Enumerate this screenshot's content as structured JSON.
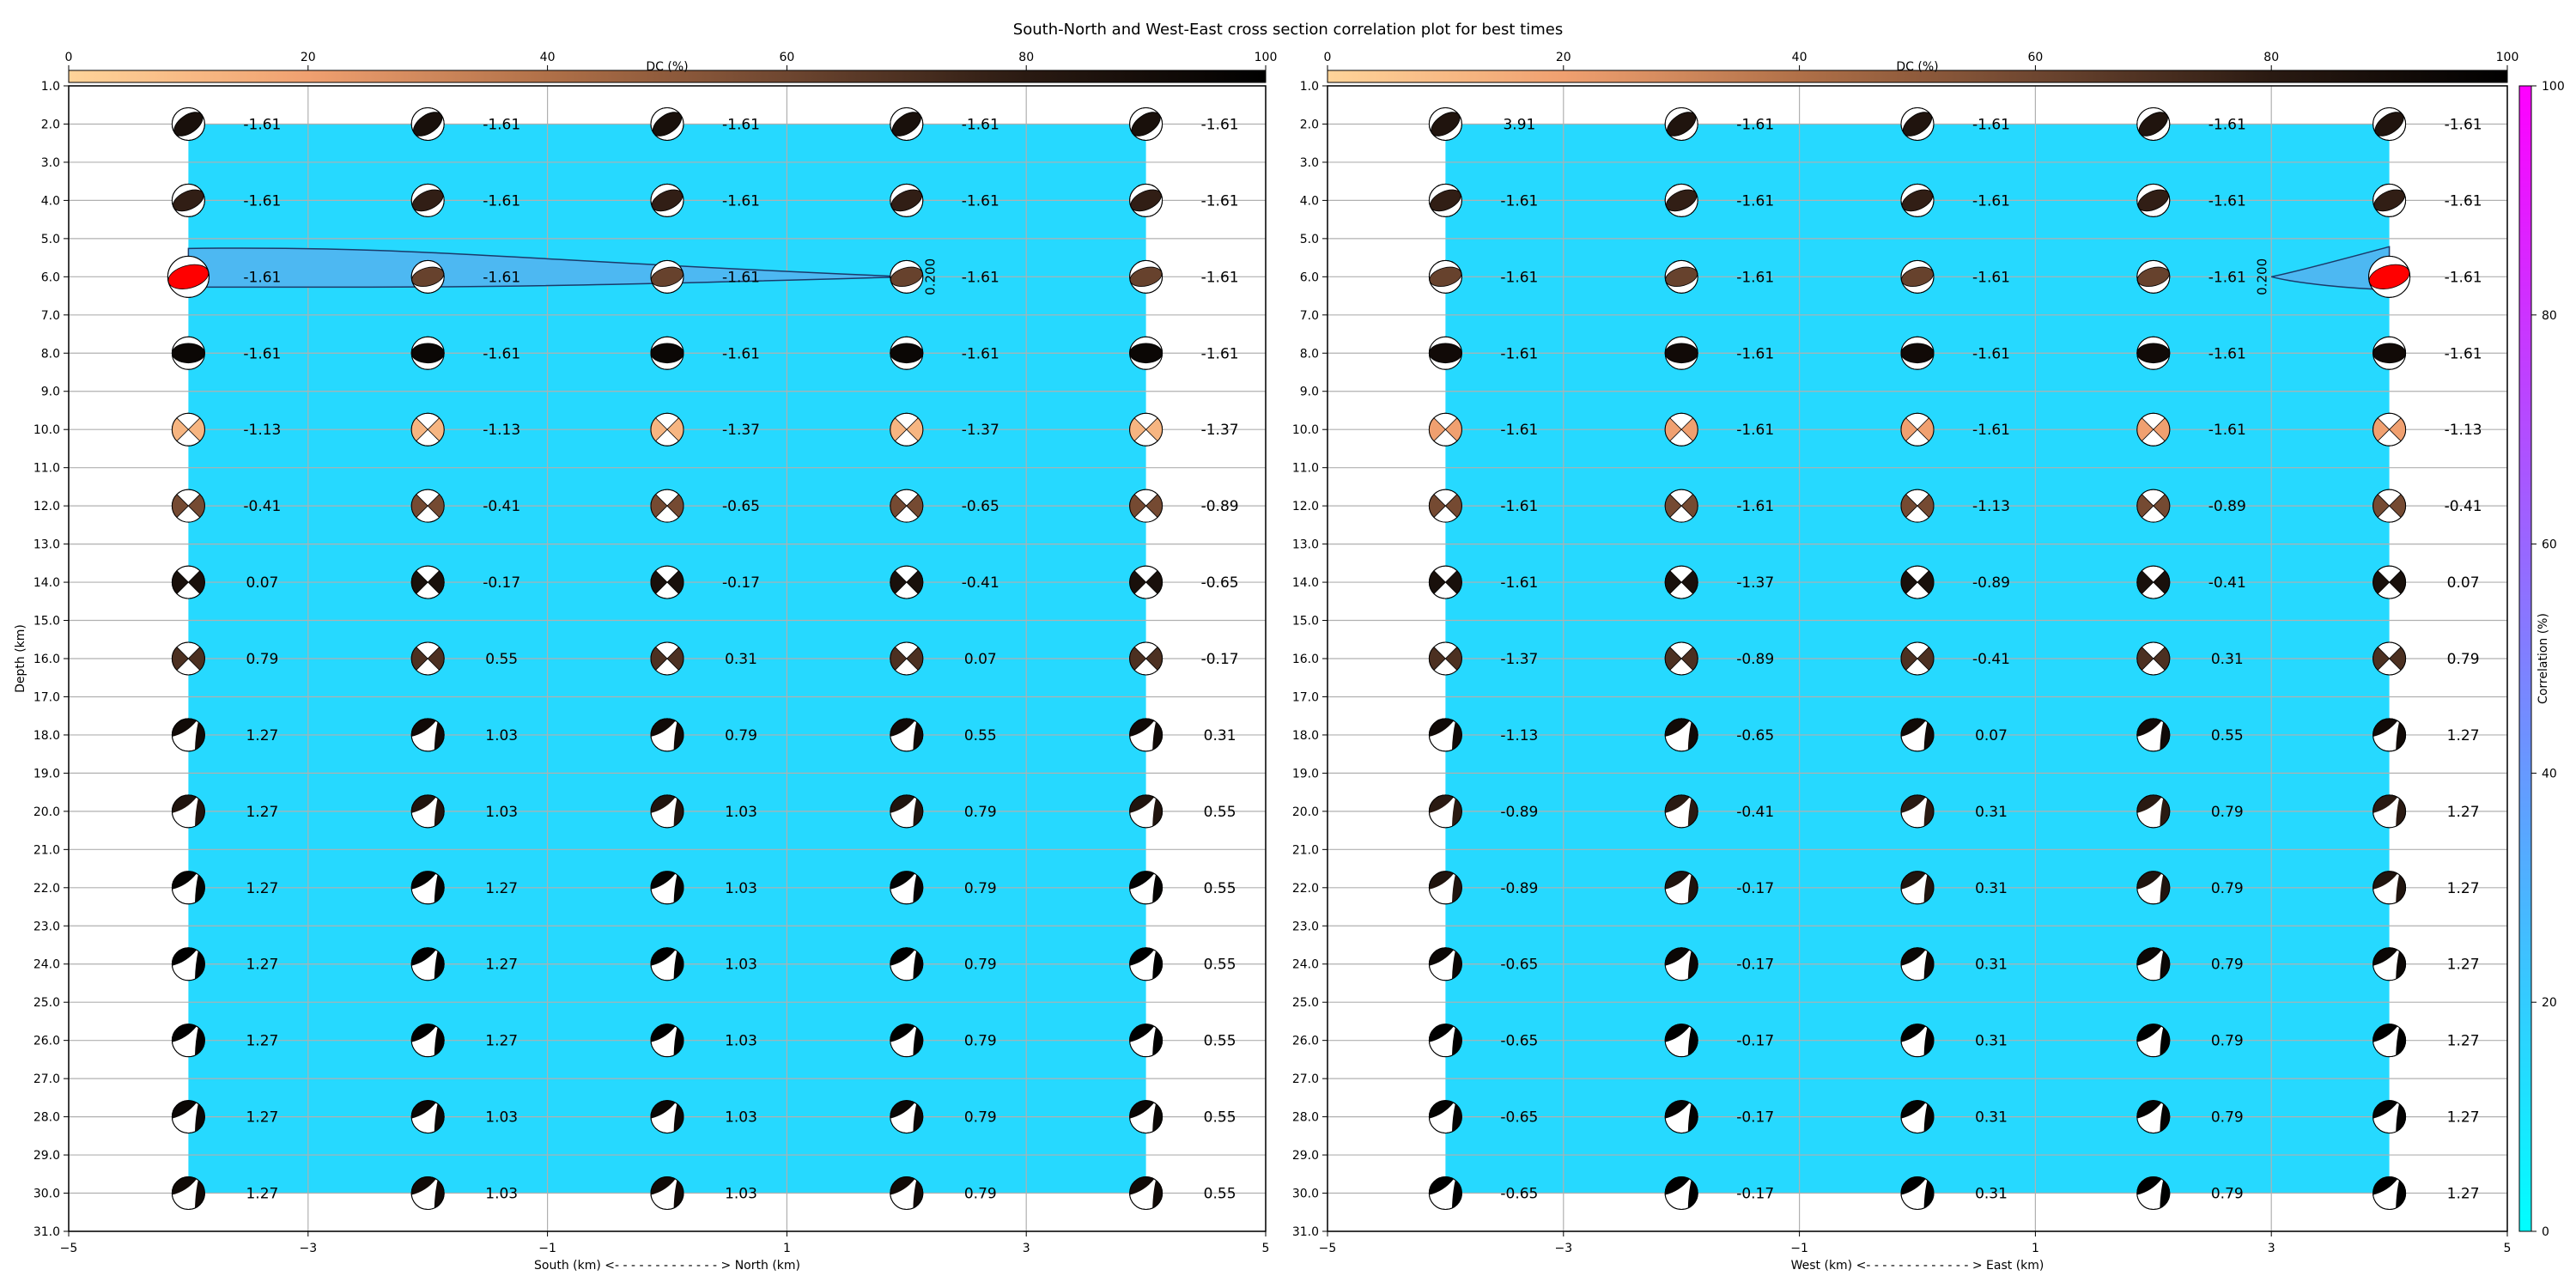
{
  "title": "South-North and West-East cross section correlation plot for best times",
  "colors": {
    "background_fill": "#26d9ff",
    "contour_fill": "#4db8f2",
    "max_beachball": "#ff0000",
    "dc_cmap": [
      "#ffd49a",
      "#f0a070",
      "#b07048",
      "#6e4630",
      "#2a1a12",
      "#000000"
    ],
    "corr_cmap": [
      "#00ffff",
      "#ff00ff"
    ]
  },
  "dc_colorbar": {
    "label": "DC (%)",
    "ticks": [
      "0",
      "20",
      "40",
      "60",
      "80",
      "100"
    ]
  },
  "corr_colorbar": {
    "label": "Correlation (%)",
    "ticks": [
      "0",
      "20",
      "40",
      "60",
      "80",
      "100"
    ]
  },
  "chart_data": [
    {
      "type": "scatter",
      "panel": "south-north",
      "xlabel": "South (km) <- - - - - - - - - - - - - > North (km)",
      "ylabel": "Depth (km)",
      "xlim": [
        -5,
        5
      ],
      "ylim": [
        31,
        1
      ],
      "xticks": [
        "−5",
        "−3",
        "−1",
        "1",
        "3",
        "5"
      ],
      "yticks": [
        "1.0",
        "2.0",
        "3.0",
        "4.0",
        "5.0",
        "6.0",
        "7.0",
        "8.0",
        "9.0",
        "10.0",
        "11.0",
        "12.0",
        "13.0",
        "14.0",
        "15.0",
        "16.0",
        "17.0",
        "18.0",
        "19.0",
        "20.0",
        "21.0",
        "22.0",
        "23.0",
        "24.0",
        "25.0",
        "26.0",
        "27.0",
        "28.0",
        "29.0",
        "30.0",
        "31.0"
      ],
      "grid": true,
      "x": [
        -4,
        -2,
        0,
        2,
        4
      ],
      "depths": [
        2,
        4,
        6,
        8,
        10,
        12,
        14,
        16,
        18,
        20,
        22,
        24,
        26,
        28,
        30
      ],
      "time_labels": [
        [
          "-1.61",
          "-1.61",
          "-1.61",
          "-1.61",
          "-1.61"
        ],
        [
          "-1.61",
          "-1.61",
          "-1.61",
          "-1.61",
          "-1.61"
        ],
        [
          "-1.61",
          "-1.61",
          "-1.61",
          "-1.61",
          "-1.61"
        ],
        [
          "-1.61",
          "-1.61",
          "-1.61",
          "-1.61",
          "-1.61"
        ],
        [
          "-1.13",
          "-1.13",
          "-1.37",
          "-1.37",
          "-1.37"
        ],
        [
          "-0.41",
          "-0.41",
          "-0.65",
          "-0.65",
          "-0.89"
        ],
        [
          "0.07",
          "-0.17",
          "-0.17",
          "-0.41",
          "-0.65"
        ],
        [
          "0.79",
          "0.55",
          "0.31",
          "0.07",
          "-0.17"
        ],
        [
          "1.27",
          "1.03",
          "0.79",
          "0.55",
          "0.31"
        ],
        [
          "1.27",
          "1.03",
          "1.03",
          "0.79",
          "0.55"
        ],
        [
          "1.27",
          "1.27",
          "1.03",
          "0.79",
          "0.55"
        ],
        [
          "1.27",
          "1.27",
          "1.03",
          "0.79",
          "0.55"
        ],
        [
          "1.27",
          "1.27",
          "1.03",
          "0.79",
          "0.55"
        ],
        [
          "1.27",
          "1.03",
          "1.03",
          "0.79",
          "0.55"
        ],
        [
          "1.27",
          "1.03",
          "1.03",
          "0.79",
          "0.55"
        ]
      ],
      "dc_by_depth": [
        88,
        78,
        62,
        95,
        12,
        58,
        88,
        70,
        92,
        85,
        98,
        100,
        100,
        95,
        92
      ],
      "max_correlation": {
        "x": -4,
        "depth": 6
      },
      "contour_label": "0.200"
    },
    {
      "type": "scatter",
      "panel": "west-east",
      "xlabel": "West (km) <- - - - - - - - - - - - - > East (km)",
      "ylabel": "",
      "xlim": [
        -5,
        5
      ],
      "ylim": [
        31,
        1
      ],
      "xticks": [
        "−5",
        "−3",
        "−1",
        "1",
        "3",
        "5"
      ],
      "yticks": [
        "1.0",
        "2.0",
        "3.0",
        "4.0",
        "5.0",
        "6.0",
        "7.0",
        "8.0",
        "9.0",
        "10.0",
        "11.0",
        "12.0",
        "13.0",
        "14.0",
        "15.0",
        "16.0",
        "17.0",
        "18.0",
        "19.0",
        "20.0",
        "21.0",
        "22.0",
        "23.0",
        "24.0",
        "25.0",
        "26.0",
        "27.0",
        "28.0",
        "29.0",
        "30.0",
        "31.0"
      ],
      "grid": true,
      "x": [
        -4,
        -2,
        0,
        2,
        4
      ],
      "depths": [
        2,
        4,
        6,
        8,
        10,
        12,
        14,
        16,
        18,
        20,
        22,
        24,
        26,
        28,
        30
      ],
      "time_labels": [
        [
          "3.91",
          "-1.61",
          "-1.61",
          "-1.61",
          "-1.61"
        ],
        [
          "-1.61",
          "-1.61",
          "-1.61",
          "-1.61",
          "-1.61"
        ],
        [
          "-1.61",
          "-1.61",
          "-1.61",
          "-1.61",
          "-1.61"
        ],
        [
          "-1.61",
          "-1.61",
          "-1.61",
          "-1.61",
          "-1.61"
        ],
        [
          "-1.61",
          "-1.61",
          "-1.61",
          "-1.61",
          "-1.13"
        ],
        [
          "-1.61",
          "-1.61",
          "-1.13",
          "-0.89",
          "-0.41"
        ],
        [
          "-1.61",
          "-1.37",
          "-0.89",
          "-0.41",
          "0.07"
        ],
        [
          "-1.37",
          "-0.89",
          "-0.41",
          "0.31",
          "0.79"
        ],
        [
          "-1.13",
          "-0.65",
          "0.07",
          "0.55",
          "1.27"
        ],
        [
          "-0.89",
          "-0.41",
          "0.31",
          "0.79",
          "1.27"
        ],
        [
          "-0.89",
          "-0.17",
          "0.31",
          "0.79",
          "1.27"
        ],
        [
          "-0.65",
          "-0.17",
          "0.31",
          "0.79",
          "1.27"
        ],
        [
          "-0.65",
          "-0.17",
          "0.31",
          "0.79",
          "1.27"
        ],
        [
          "-0.65",
          "-0.17",
          "0.31",
          "0.79",
          "1.27"
        ],
        [
          "-0.65",
          "-0.17",
          "0.31",
          "0.79",
          "1.27"
        ]
      ],
      "dc_by_depth": [
        85,
        78,
        62,
        92,
        20,
        58,
        88,
        70,
        92,
        80,
        85,
        95,
        100,
        98,
        100
      ],
      "max_correlation": {
        "x": 4,
        "depth": 6
      },
      "contour_label": "0.200"
    }
  ]
}
